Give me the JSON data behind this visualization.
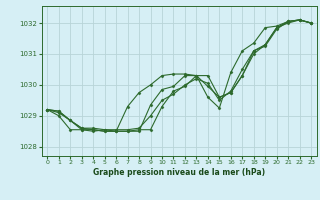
{
  "background_color": "#d6eff5",
  "grid_color": "#b8d4d8",
  "line_color": "#2d6a2d",
  "marker_color": "#2d6a2d",
  "xlabel": "Graphe pression niveau de la mer (hPa)",
  "xlim": [
    -0.5,
    23.5
  ],
  "ylim": [
    1027.7,
    1032.55
  ],
  "yticks": [
    1028,
    1029,
    1030,
    1031,
    1032
  ],
  "xticks": [
    0,
    1,
    2,
    3,
    4,
    5,
    6,
    7,
    8,
    9,
    10,
    11,
    12,
    13,
    14,
    15,
    16,
    17,
    18,
    19,
    20,
    21,
    22,
    23
  ],
  "series": [
    [
      1029.2,
      1029.15,
      1028.85,
      1028.55,
      1028.55,
      1028.5,
      1028.5,
      1028.5,
      1028.5,
      1029.35,
      1029.85,
      1029.95,
      1030.3,
      1030.3,
      1029.95,
      1029.6,
      1029.75,
      1030.3,
      1031.1,
      1031.3,
      1031.85,
      1032.05,
      1032.1,
      1032.0
    ],
    [
      1029.2,
      1029.1,
      1028.85,
      1028.6,
      1028.55,
      1028.5,
      1028.5,
      1029.3,
      1029.75,
      1030.0,
      1030.3,
      1030.35,
      1030.35,
      1030.3,
      1029.6,
      1029.25,
      1030.4,
      1031.1,
      1031.35,
      1031.85,
      1031.9,
      1032.05,
      1032.1,
      1032.0
    ],
    [
      1029.2,
      1029.0,
      1028.55,
      1028.55,
      1028.5,
      1028.55,
      1028.5,
      1028.5,
      1028.55,
      1028.55,
      1029.3,
      1029.8,
      1029.95,
      1030.3,
      1030.3,
      1029.6,
      1029.75,
      1030.3,
      1031.0,
      1031.3,
      1031.85,
      1032.0,
      1032.1,
      1032.0
    ],
    [
      1029.2,
      1029.15,
      1028.85,
      1028.6,
      1028.6,
      1028.55,
      1028.55,
      1028.55,
      1028.6,
      1029.0,
      1029.5,
      1029.7,
      1030.0,
      1030.2,
      1030.05,
      1029.5,
      1029.8,
      1030.5,
      1031.1,
      1031.25,
      1031.8,
      1032.05,
      1032.1,
      1032.0
    ]
  ]
}
